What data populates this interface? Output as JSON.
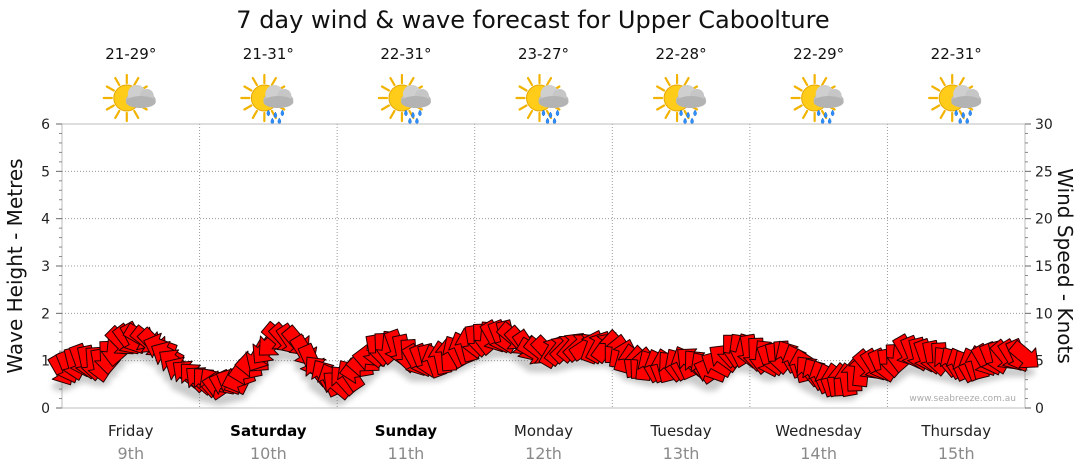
{
  "chart_data": {
    "type": "line",
    "title": "7 day wind & wave forecast for Upper Caboolture",
    "ylabel_left": "Wave Height - Metres",
    "ylabel_right": "Wind Speed - Knots",
    "ylim_left": [
      0,
      6
    ],
    "ylim_right": [
      0,
      30
    ],
    "yticks_left": [
      "0",
      "1",
      "2",
      "3",
      "4",
      "5",
      "6"
    ],
    "yticks_right": [
      "0",
      "5",
      "10",
      "15",
      "20",
      "25",
      "30"
    ],
    "grid": true,
    "watermark": "www.seabreeze.com.au",
    "days": [
      {
        "day": "Friday",
        "date": "9th",
        "temp": "21-29°",
        "bold": false,
        "weather": "partly-cloudy-icon"
      },
      {
        "day": "Saturday",
        "date": "10th",
        "temp": "21-31°",
        "bold": true,
        "weather": "showers-icon"
      },
      {
        "day": "Sunday",
        "date": "11th",
        "temp": "22-31°",
        "bold": true,
        "weather": "showers-icon"
      },
      {
        "day": "Monday",
        "date": "12th",
        "temp": "23-27°",
        "bold": false,
        "weather": "showers-icon"
      },
      {
        "day": "Tuesday",
        "date": "13th",
        "temp": "22-28°",
        "bold": false,
        "weather": "showers-icon"
      },
      {
        "day": "Wednesday",
        "date": "14th",
        "temp": "22-29°",
        "bold": false,
        "weather": "showers-icon"
      },
      {
        "day": "Thursday",
        "date": "15th",
        "temp": "22-31°",
        "bold": false,
        "weather": "showers-icon"
      }
    ],
    "series": [
      {
        "name": "Wind Speed",
        "unit": "knots",
        "color": "#ff0000",
        "x_day": [
          0,
          0.14,
          0.28,
          0.43,
          0.57,
          0.71,
          0.86,
          1,
          1.14,
          1.28,
          1.43,
          1.57,
          1.71,
          1.86,
          2,
          2.14,
          2.28,
          2.43,
          2.57,
          2.71,
          2.86,
          3,
          3.14,
          3.28,
          3.43,
          3.57,
          3.71,
          3.86,
          4,
          4.14,
          4.28,
          4.43,
          4.57,
          4.71,
          4.86,
          5,
          5.14,
          5.28,
          5.43,
          5.57,
          5.71,
          5.86,
          6,
          6.14,
          6.28,
          6.43,
          6.57,
          6.71,
          6.86,
          7
        ],
        "values": [
          4,
          5,
          4.5,
          7,
          7.5,
          6.5,
          4,
          3,
          2.5,
          3,
          5.5,
          7.5,
          7,
          4,
          2.5,
          4,
          6,
          6.5,
          5,
          5,
          6,
          7,
          7.5,
          7.5,
          6,
          6,
          6.5,
          6.5,
          6.5,
          5,
          4.5,
          4.5,
          5,
          4,
          6,
          6,
          5,
          5.5,
          4,
          3,
          3,
          4.5,
          4.5,
          6,
          5.5,
          5,
          4.5,
          5,
          5.5,
          5.5
        ],
        "direction_deg": [
          60,
          70,
          80,
          45,
          30,
          200,
          210,
          220,
          190,
          160,
          120,
          40,
          50,
          230,
          220,
          170,
          80,
          70,
          60,
          250,
          240,
          80,
          60,
          40,
          30,
          300,
          310,
          290,
          270,
          260,
          240,
          230,
          220,
          200,
          90,
          80,
          70,
          240,
          230,
          250,
          260,
          50,
          80,
          60,
          70,
          230,
          240,
          60,
          50,
          40
        ]
      }
    ]
  }
}
